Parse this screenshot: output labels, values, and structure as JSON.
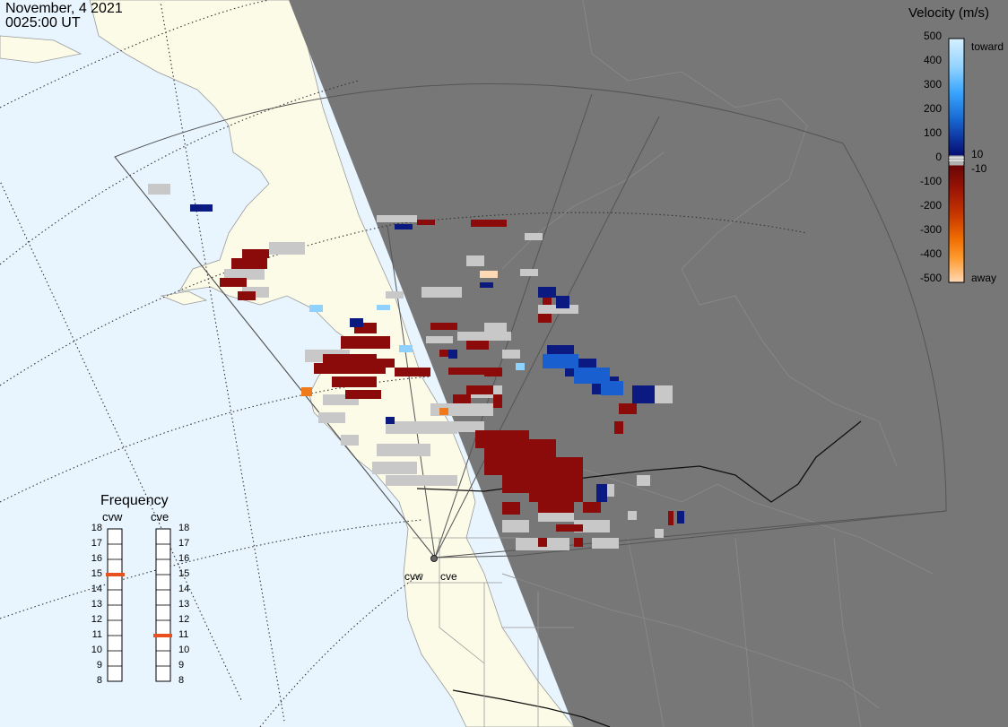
{
  "header": {
    "date": "November, 4 2021",
    "time": "0025:00 UT"
  },
  "colorbar": {
    "title": "Velocity (m/s)",
    "ticks": [
      "500",
      "400",
      "300",
      "200",
      "100",
      "0",
      "-100",
      "-200",
      "-300",
      "-400",
      "-500"
    ],
    "toward_label": "toward",
    "away_label": "away",
    "threshold_pos": "10",
    "threshold_neg": "-10",
    "colors": [
      "#d6f0ff",
      "#a5daff",
      "#54b8ff",
      "#1e90ff",
      "#1564d0",
      "#0f3fa8",
      "#0a1a80",
      "#8c0a0a",
      "#a51e05",
      "#c23a00",
      "#e36a00",
      "#ff9a1e",
      "#ffcf9e"
    ],
    "ground_scatter_color": "#c8c8c8",
    "scale": "velocity m/s, positive toward radar"
  },
  "frequency_panel": {
    "title": "Frequency",
    "radars": [
      {
        "name": "cvw",
        "freq_mhz": 15.0
      },
      {
        "name": "cve",
        "freq_mhz": 11.0
      }
    ],
    "ticks": [
      "18",
      "17",
      "16",
      "15",
      "14",
      "13",
      "12",
      "11",
      "10",
      "9",
      "8"
    ],
    "range_mhz": [
      8,
      18
    ],
    "marker_color": "#e8501e"
  },
  "sites": {
    "cvw": "cvw",
    "cve": "cve"
  },
  "map": {
    "ocean_color": "#e8f5ff",
    "land_color": "#fbfbe8",
    "night_color": "#777777",
    "fov_color": "#555555"
  }
}
